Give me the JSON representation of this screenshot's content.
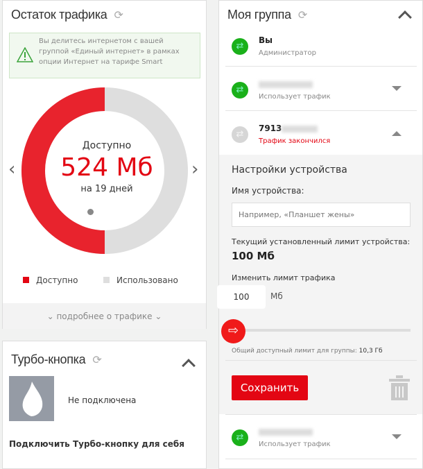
{
  "traffic": {
    "title": "Остаток трафика",
    "notice": "Вы делитесь интернетом с вашей группой «Единый интернет» в рамках опции Интернет на тарифе Smart",
    "available_label": "Доступно",
    "amount": "524 Мб",
    "days": "на 19 дней",
    "available_fraction": 0.5,
    "legend": [
      {
        "label": "Доступно",
        "color": "#e30613"
      },
      {
        "label": "Использовано",
        "color": "#dedede"
      }
    ],
    "more_link": "подробнее о трафике"
  },
  "turbo": {
    "title": "Турбо-кнопка",
    "status": "Не подключена",
    "connect": "Подключить Турбо-кнопку для себя"
  },
  "group": {
    "title": "Моя группа",
    "members": [
      {
        "name": "Вы",
        "status": "Администратор"
      },
      {
        "name": "",
        "status": "Использует трафик"
      },
      {
        "name": "7913",
        "status": "Трафик закончился"
      },
      {
        "name": "",
        "status": "Использует трафик"
      }
    ],
    "settings": {
      "title": "Настройки устройства",
      "device_name_label": "Имя устройства:",
      "device_name_placeholder": "Например, «Планшет жены»",
      "current_limit_label": "Текущий установленный лимит устройства:",
      "current_limit": "100 Мб",
      "change_label": "Изменить лимит трафика",
      "limit_value": "100",
      "unit": "Мб",
      "slider_fraction": 0,
      "group_limit_label": "Общий доступный лимит для группы:",
      "group_limit": "10,3 Гб",
      "save": "Сохранить"
    }
  }
}
